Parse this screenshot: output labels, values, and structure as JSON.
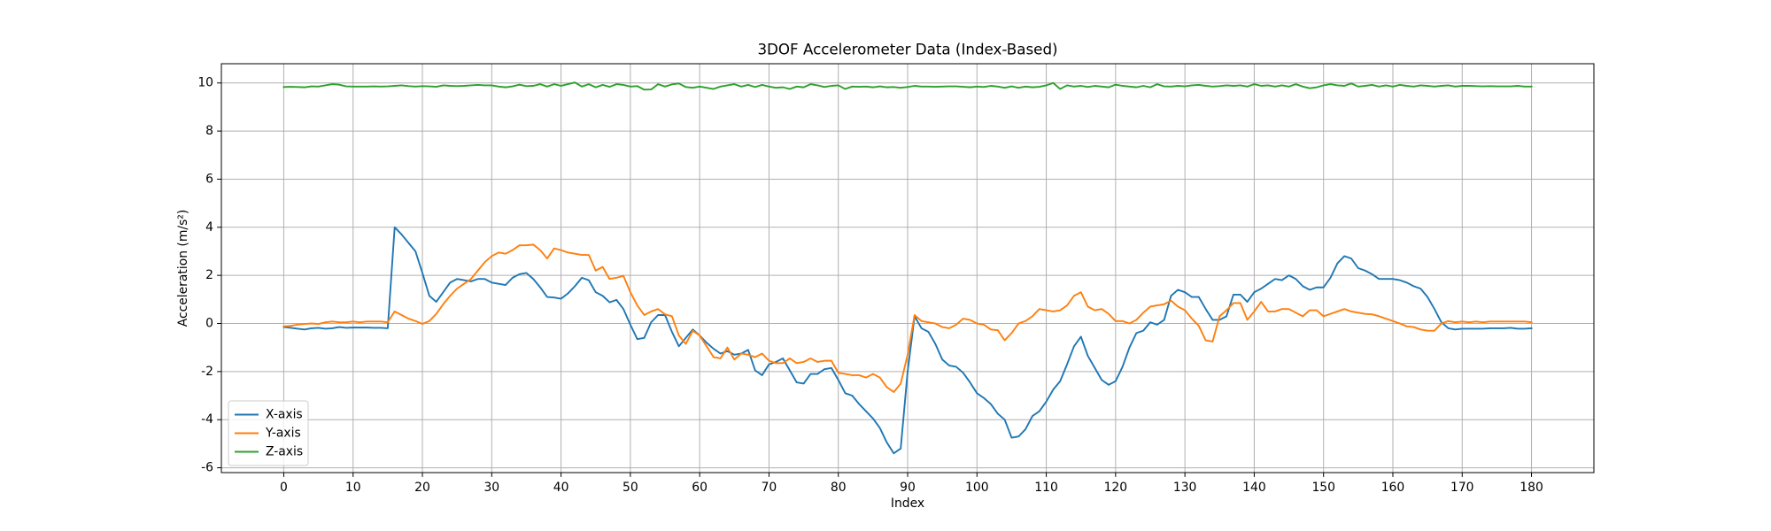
{
  "chart_data": {
    "type": "line",
    "title": "3DOF Accelerometer Data (Index-Based)",
    "xlabel": "Index",
    "ylabel": "Acceleration (m/s²)",
    "xlim": [
      -9,
      189
    ],
    "xticks": [
      0,
      10,
      20,
      30,
      40,
      50,
      60,
      70,
      80,
      90,
      100,
      110,
      120,
      130,
      140,
      150,
      160,
      170,
      180
    ],
    "ylim": [
      -6.2,
      10.8
    ],
    "yticks": [
      -6,
      -4,
      -2,
      0,
      2,
      4,
      6,
      8,
      10
    ],
    "grid": true,
    "legend": "lower left",
    "series": [
      {
        "name": "X-axis",
        "color": "#1f77b4",
        "values": [
          -0.15,
          -0.18,
          -0.22,
          -0.25,
          -0.2,
          -0.18,
          -0.22,
          -0.2,
          -0.15,
          -0.18,
          -0.17,
          -0.17,
          -0.17,
          -0.18,
          -0.18,
          -0.2,
          4.0,
          3.7,
          3.35,
          3.0,
          2.1,
          1.15,
          0.9,
          1.3,
          1.7,
          1.85,
          1.8,
          1.75,
          1.85,
          1.85,
          1.7,
          1.65,
          1.6,
          1.9,
          2.05,
          2.1,
          1.85,
          1.5,
          1.1,
          1.08,
          1.03,
          1.25,
          1.55,
          1.9,
          1.8,
          1.3,
          1.15,
          0.88,
          0.98,
          0.6,
          -0.05,
          -0.65,
          -0.6,
          0.05,
          0.35,
          0.35,
          -0.35,
          -0.95,
          -0.6,
          -0.25,
          -0.5,
          -0.8,
          -1.05,
          -1.25,
          -1.15,
          -1.3,
          -1.25,
          -1.1,
          -1.95,
          -2.15,
          -1.7,
          -1.6,
          -1.45,
          -1.95,
          -2.45,
          -2.5,
          -2.1,
          -2.1,
          -1.9,
          -1.85,
          -2.35,
          -2.9,
          -3.0,
          -3.35,
          -3.65,
          -3.95,
          -4.35,
          -4.95,
          -5.4,
          -5.2,
          -2.0,
          0.3,
          -0.2,
          -0.35,
          -0.85,
          -1.5,
          -1.75,
          -1.8,
          -2.05,
          -2.45,
          -2.9,
          -3.1,
          -3.35,
          -3.75,
          -4.0,
          -4.75,
          -4.7,
          -4.4,
          -3.85,
          -3.65,
          -3.25,
          -2.75,
          -2.4,
          -1.7,
          -0.95,
          -0.55,
          -1.35,
          -1.85,
          -2.35,
          -2.55,
          -2.4,
          -1.8,
          -1.0,
          -0.4,
          -0.3,
          0.05,
          -0.05,
          0.15,
          1.15,
          1.4,
          1.3,
          1.1,
          1.1,
          0.6,
          0.15,
          0.15,
          0.3,
          1.2,
          1.2,
          0.9,
          1.3,
          1.45,
          1.65,
          1.85,
          1.8,
          2.0,
          1.85,
          1.55,
          1.4,
          1.5,
          1.5,
          1.9,
          2.5,
          2.8,
          2.7,
          2.3,
          2.2,
          2.05,
          1.85,
          1.85,
          1.85,
          1.8,
          1.7,
          1.55,
          1.45,
          1.1,
          0.6,
          0.05,
          -0.2,
          -0.25,
          -0.22,
          -0.22,
          -0.22,
          -0.22,
          -0.2,
          -0.2,
          -0.2,
          -0.18,
          -0.22,
          -0.22,
          -0.2
        ]
      },
      {
        "name": "Y-axis",
        "color": "#ff7f0e",
        "values": [
          -0.12,
          -0.1,
          -0.05,
          -0.02,
          0,
          -0.02,
          0.05,
          0.08,
          0.05,
          0.05,
          0.08,
          0.05,
          0.08,
          0.08,
          0.08,
          0.05,
          0.5,
          0.35,
          0.2,
          0.1,
          -0.02,
          0.1,
          0.4,
          0.8,
          1.15,
          1.45,
          1.65,
          1.85,
          2.2,
          2.55,
          2.8,
          2.95,
          2.9,
          3.05,
          3.25,
          3.25,
          3.28,
          3.05,
          2.7,
          3.12,
          3.05,
          2.95,
          2.9,
          2.85,
          2.85,
          2.2,
          2.35,
          1.85,
          1.9,
          1.98,
          1.3,
          0.75,
          0.35,
          0.5,
          0.6,
          0.38,
          0.3,
          -0.5,
          -0.85,
          -0.3,
          -0.5,
          -0.95,
          -1.4,
          -1.45,
          -1.0,
          -1.5,
          -1.25,
          -1.3,
          -1.4,
          -1.25,
          -1.55,
          -1.65,
          -1.65,
          -1.45,
          -1.65,
          -1.6,
          -1.45,
          -1.6,
          -1.55,
          -1.55,
          -2.05,
          -2.1,
          -2.15,
          -2.15,
          -2.25,
          -2.1,
          -2.25,
          -2.65,
          -2.85,
          -2.5,
          -1.3,
          0.35,
          0.1,
          0.05,
          0.0,
          -0.15,
          -0.2,
          -0.05,
          0.2,
          0.15,
          0.0,
          -0.05,
          -0.25,
          -0.28,
          -0.7,
          -0.4,
          0.0,
          0.1,
          0.3,
          0.6,
          0.55,
          0.5,
          0.55,
          0.75,
          1.15,
          1.3,
          0.7,
          0.55,
          0.6,
          0.4,
          0.1,
          0.1,
          0.0,
          0.15,
          0.45,
          0.7,
          0.75,
          0.8,
          0.95,
          0.7,
          0.55,
          0.2,
          -0.1,
          -0.7,
          -0.75,
          0.3,
          0.55,
          0.85,
          0.85,
          0.15,
          0.5,
          0.9,
          0.5,
          0.5,
          0.6,
          0.6,
          0.45,
          0.3,
          0.55,
          0.55,
          0.3,
          0.4,
          0.5,
          0.6,
          0.5,
          0.45,
          0.4,
          0.38,
          0.3,
          0.2,
          0.1,
          0.0,
          -0.12,
          -0.15,
          -0.25,
          -0.3,
          -0.3,
          0.0,
          0.1,
          0.05,
          0.08,
          0.05,
          0.08,
          0.05,
          0.08,
          0.08,
          0.08,
          0.08,
          0.08,
          0.08,
          0.05
        ]
      },
      {
        "name": "Z-axis",
        "color": "#2ca02c",
        "values": [
          9.83,
          9.84,
          9.83,
          9.82,
          9.86,
          9.85,
          9.9,
          9.95,
          9.93,
          9.86,
          9.85,
          9.85,
          9.85,
          9.86,
          9.85,
          9.86,
          9.88,
          9.9,
          9.87,
          9.85,
          9.87,
          9.86,
          9.84,
          9.9,
          9.88,
          9.87,
          9.88,
          9.9,
          9.92,
          9.9,
          9.9,
          9.85,
          9.82,
          9.86,
          9.93,
          9.87,
          9.88,
          9.95,
          9.85,
          9.95,
          9.88,
          9.95,
          10.02,
          9.85,
          9.95,
          9.82,
          9.92,
          9.84,
          9.95,
          9.92,
          9.85,
          9.87,
          9.72,
          9.73,
          9.95,
          9.85,
          9.94,
          9.98,
          9.83,
          9.8,
          9.85,
          9.8,
          9.75,
          9.85,
          9.9,
          9.95,
          9.85,
          9.92,
          9.83,
          9.92,
          9.85,
          9.8,
          9.82,
          9.75,
          9.85,
          9.82,
          9.95,
          9.9,
          9.83,
          9.88,
          9.9,
          9.75,
          9.85,
          9.84,
          9.85,
          9.82,
          9.86,
          9.82,
          9.83,
          9.8,
          9.83,
          9.88,
          9.85,
          9.85,
          9.84,
          9.85,
          9.86,
          9.86,
          9.84,
          9.82,
          9.85,
          9.83,
          9.88,
          9.85,
          9.8,
          9.86,
          9.8,
          9.85,
          9.82,
          9.84,
          9.9,
          10.0,
          9.75,
          9.9,
          9.85,
          9.88,
          9.83,
          9.88,
          9.85,
          9.82,
          9.93,
          9.88,
          9.85,
          9.82,
          9.88,
          9.82,
          9.95,
          9.86,
          9.85,
          9.88,
          9.86,
          9.9,
          9.92,
          9.88,
          9.85,
          9.87,
          9.9,
          9.88,
          9.9,
          9.85,
          9.95,
          9.88,
          9.9,
          9.85,
          9.9,
          9.85,
          9.95,
          9.85,
          9.78,
          9.82,
          9.9,
          9.95,
          9.9,
          9.88,
          9.98,
          9.85,
          9.88,
          9.92,
          9.85,
          9.9,
          9.85,
          9.92,
          9.88,
          9.85,
          9.9,
          9.88,
          9.85,
          9.88,
          9.9,
          9.85,
          9.88,
          9.88,
          9.87,
          9.86,
          9.87,
          9.86,
          9.86,
          9.86,
          9.88,
          9.85,
          9.85
        ]
      }
    ]
  }
}
